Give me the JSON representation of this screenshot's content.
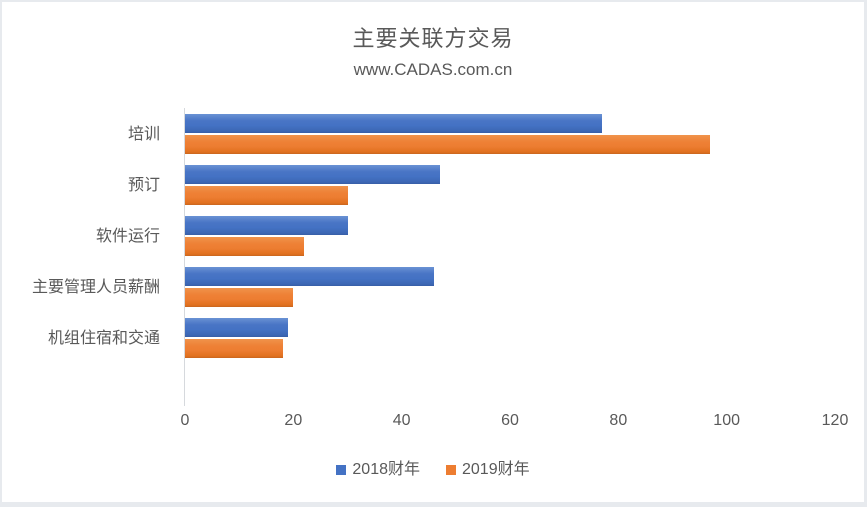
{
  "title": "主要关联方交易",
  "subtitle": "www.CADAS.com.cn",
  "colors": {
    "series_2018": "#4472C4",
    "series_2019": "#ED7D31",
    "text": "#595959",
    "axis_line": "#D6D9DD",
    "background": "#FFFFFF"
  },
  "chart_data": {
    "type": "bar",
    "orientation": "horizontal",
    "title": "主要关联方交易",
    "subtitle": "www.CADAS.com.cn",
    "categories": [
      "培训",
      "预订",
      "软件运行",
      "主要管理人员薪酬",
      "机组住宿和交通"
    ],
    "series": [
      {
        "name": "2018财年",
        "color": "#4472C4",
        "values": [
          77,
          47,
          30,
          46,
          19
        ]
      },
      {
        "name": "2019财年",
        "color": "#ED7D31",
        "values": [
          97,
          30,
          22,
          20,
          18
        ]
      }
    ],
    "xlabel": "",
    "ylabel": "",
    "xlim": [
      0,
      120
    ],
    "x_ticks": [
      0,
      20,
      40,
      60,
      80,
      100,
      120
    ],
    "grid": false,
    "legend_position": "bottom"
  }
}
